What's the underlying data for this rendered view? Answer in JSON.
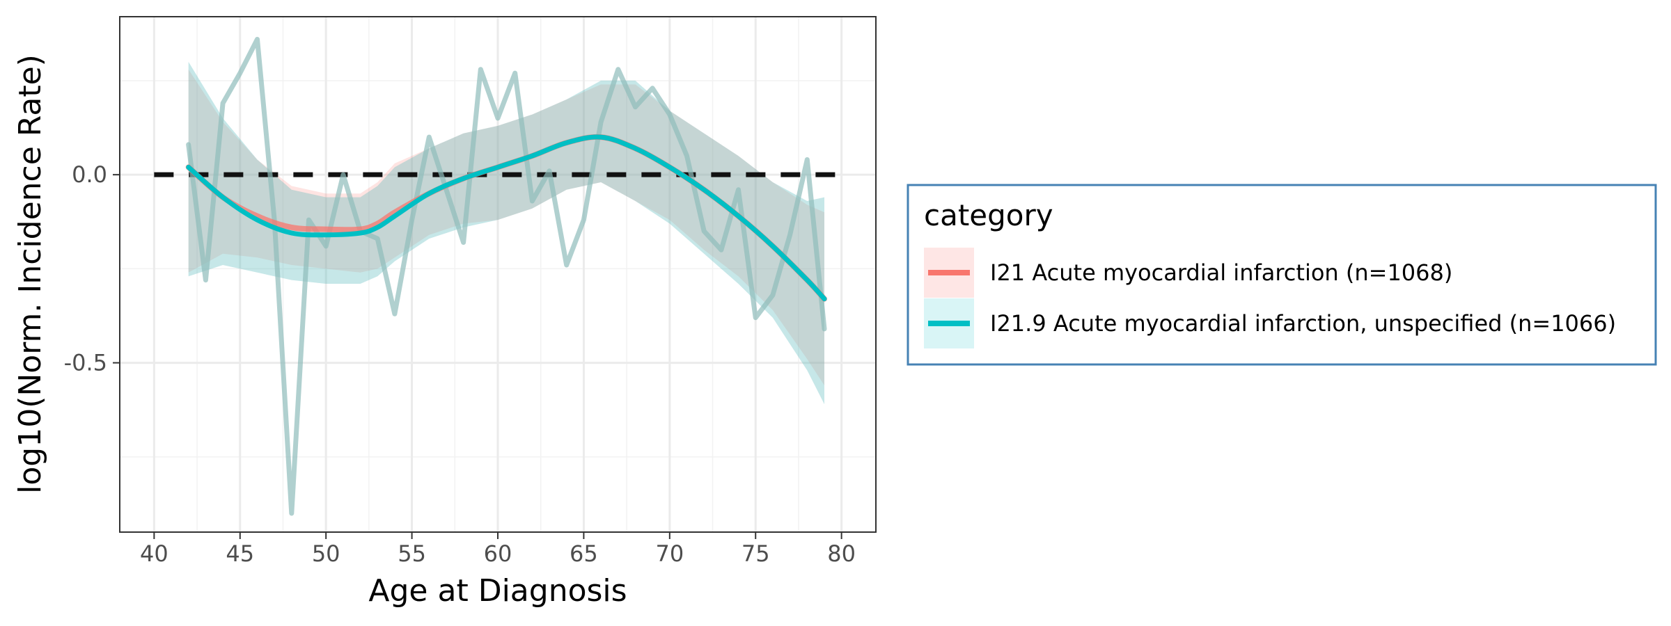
{
  "chart_data": {
    "type": "line",
    "title": "",
    "xlabel": "Age at Diagnosis",
    "ylabel": "log10(Norm. Incidence Rate)",
    "xlim": [
      38,
      82
    ],
    "ylim": [
      -0.95,
      0.42
    ],
    "x_ticks": [
      40,
      45,
      50,
      55,
      60,
      65,
      70,
      75,
      80
    ],
    "x_tick_labels": [
      "40",
      "45",
      "50",
      "55",
      "60",
      "65",
      "70",
      "75",
      "80"
    ],
    "y_ticks": [
      0.0,
      -0.5
    ],
    "y_tick_labels": [
      "0.0",
      "-0.5"
    ],
    "grid": true,
    "reference_line": {
      "y": 0.0,
      "x_range": [
        40,
        80
      ],
      "style": "dashed"
    },
    "legend": {
      "title": "category",
      "position": "right",
      "entries": [
        {
          "label": "I21 Acute myocardial infarction (n=1068)",
          "color": "#F8766D"
        },
        {
          "label": "I21.9 Acute myocardial infarction, unspecified (n=1066)",
          "color": "#00BFC4"
        }
      ]
    },
    "raw_line": {
      "color": "#8FBCBB",
      "x": [
        42,
        43,
        44,
        45,
        46,
        47,
        48,
        49,
        50,
        51,
        52,
        53,
        54,
        55,
        56,
        57,
        58,
        59,
        60,
        61,
        62,
        63,
        64,
        65,
        66,
        67,
        68,
        69,
        70,
        71,
        72,
        73,
        74,
        75,
        76,
        77,
        78,
        79
      ],
      "y": [
        0.08,
        -0.28,
        0.19,
        0.27,
        0.36,
        -0.12,
        -0.9,
        -0.12,
        -0.19,
        0.0,
        -0.15,
        -0.17,
        -0.37,
        -0.12,
        0.1,
        -0.04,
        -0.18,
        0.28,
        0.15,
        0.27,
        -0.07,
        0.01,
        -0.24,
        -0.12,
        0.14,
        0.28,
        0.18,
        0.23,
        0.16,
        0.05,
        -0.15,
        -0.2,
        -0.04,
        -0.38,
        -0.32,
        -0.16,
        0.04,
        -0.41
      ]
    },
    "series": [
      {
        "name": "I21 Acute myocardial infarction (n=1068)",
        "color": "#F8766D",
        "x": [
          42,
          44,
          46,
          48,
          50,
          52,
          53,
          54,
          56,
          58,
          60,
          62,
          64,
          66,
          68,
          70,
          72,
          74,
          76,
          78,
          79
        ],
        "y": [
          0.02,
          -0.06,
          -0.11,
          -0.14,
          -0.145,
          -0.145,
          -0.13,
          -0.1,
          -0.05,
          -0.01,
          0.02,
          0.05,
          0.085,
          0.1,
          0.07,
          0.02,
          -0.04,
          -0.11,
          -0.19,
          -0.28,
          -0.33
        ],
        "ci_upper": [
          0.28,
          0.14,
          0.04,
          -0.03,
          -0.05,
          -0.05,
          -0.02,
          0.03,
          0.07,
          0.11,
          0.13,
          0.16,
          0.2,
          0.24,
          0.24,
          0.17,
          0.11,
          0.05,
          -0.02,
          -0.08,
          -0.1
        ],
        "ci_lower": [
          -0.26,
          -0.21,
          -0.22,
          -0.24,
          -0.25,
          -0.26,
          -0.25,
          -0.22,
          -0.16,
          -0.13,
          -0.12,
          -0.09,
          -0.04,
          -0.02,
          -0.07,
          -0.12,
          -0.2,
          -0.27,
          -0.36,
          -0.49,
          -0.56
        ]
      },
      {
        "name": "I21.9 Acute myocardial infarction, unspecified (n=1066)",
        "color": "#00BFC4",
        "x": [
          42,
          44,
          46,
          48,
          50,
          52,
          53,
          54,
          56,
          58,
          60,
          62,
          64,
          66,
          68,
          70,
          72,
          74,
          76,
          78,
          79
        ],
        "y": [
          0.02,
          -0.06,
          -0.12,
          -0.155,
          -0.16,
          -0.155,
          -0.14,
          -0.11,
          -0.05,
          -0.01,
          0.02,
          0.05,
          0.085,
          0.1,
          0.07,
          0.02,
          -0.04,
          -0.11,
          -0.19,
          -0.28,
          -0.33
        ],
        "ci_upper": [
          0.3,
          0.15,
          0.04,
          -0.04,
          -0.06,
          -0.06,
          -0.03,
          0.02,
          0.07,
          0.11,
          0.13,
          0.16,
          0.2,
          0.25,
          0.25,
          0.17,
          0.11,
          0.05,
          -0.02,
          -0.07,
          -0.06
        ],
        "ci_lower": [
          -0.27,
          -0.24,
          -0.26,
          -0.28,
          -0.29,
          -0.29,
          -0.27,
          -0.23,
          -0.17,
          -0.14,
          -0.12,
          -0.09,
          -0.04,
          -0.02,
          -0.07,
          -0.13,
          -0.21,
          -0.29,
          -0.38,
          -0.52,
          -0.61
        ]
      }
    ]
  }
}
